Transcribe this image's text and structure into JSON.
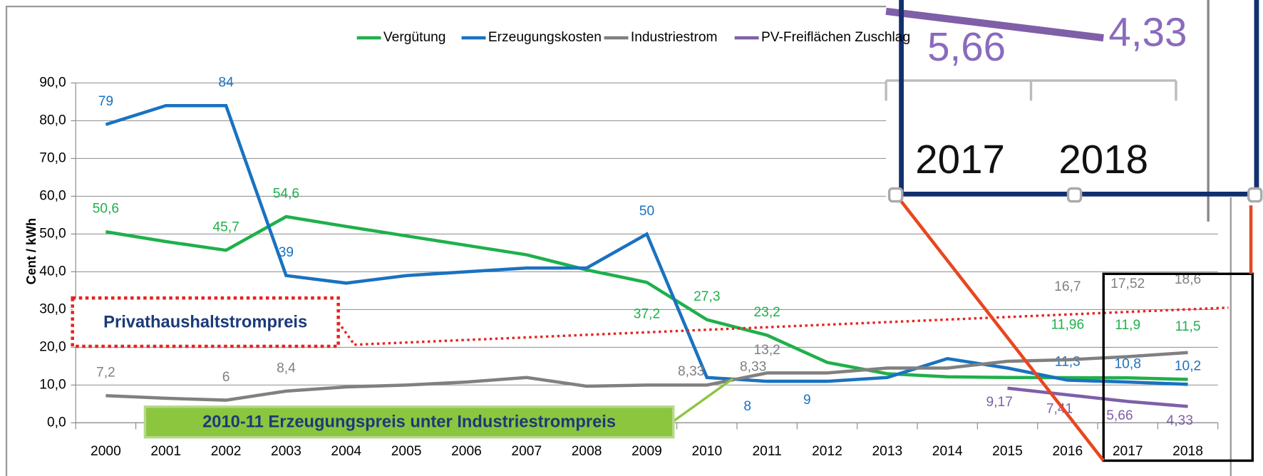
{
  "chart_data": {
    "type": "line",
    "y_label": "Cent / kWh",
    "categories": [
      "2000",
      "2001",
      "2002",
      "2003",
      "2004",
      "2005",
      "2006",
      "2007",
      "2008",
      "2009",
      "2010",
      "2011",
      "2012",
      "2013",
      "2014",
      "2015",
      "2016",
      "2017",
      "2018"
    ],
    "ylim": [
      0,
      90
    ],
    "yticks": [
      {
        "value": 0,
        "label": "0,0"
      },
      {
        "value": 10,
        "label": "10,0"
      },
      {
        "value": 20,
        "label": "20,0"
      },
      {
        "value": 30,
        "label": "30,0"
      },
      {
        "value": 40,
        "label": "40,0"
      },
      {
        "value": 50,
        "label": "50,0"
      },
      {
        "value": 60,
        "label": "60,0"
      },
      {
        "value": 70,
        "label": "70,0"
      },
      {
        "value": 80,
        "label": "80,0"
      },
      {
        "value": 90,
        "label": "90,0"
      }
    ],
    "grid": true,
    "legend": "top",
    "series": [
      {
        "name": "Vergütung",
        "color": "#1fb04b",
        "values": [
          50.6,
          48,
          45.7,
          54.6,
          52,
          49.5,
          47,
          44.5,
          40.5,
          37.2,
          27.3,
          23.2,
          16,
          13,
          12.2,
          12,
          11.96,
          11.9,
          11.5
        ],
        "value_labels": [
          "50,6",
          null,
          "45,7",
          "54,6",
          null,
          null,
          null,
          null,
          null,
          "37,2",
          "27,3",
          "23,2",
          null,
          null,
          null,
          null,
          "11,96",
          "11,9",
          "11,5"
        ]
      },
      {
        "name": "Erzeugungskosten",
        "color": "#1a72c0",
        "values": [
          79,
          84,
          84,
          39,
          37,
          39,
          40,
          41,
          41,
          50,
          12,
          11,
          11,
          12,
          17,
          14.5,
          11.3,
          10.8,
          10.2
        ],
        "value_labels": [
          "79",
          null,
          "84",
          "39",
          null,
          null,
          null,
          null,
          null,
          "50",
          null,
          null,
          null,
          null,
          null,
          null,
          "11,3",
          "10,8",
          "10,2"
        ]
      },
      {
        "name": "Industriestrom",
        "color": "#808080",
        "values": [
          7.2,
          6.5,
          6,
          8.4,
          9.5,
          10,
          10.8,
          12,
          9.7,
          10,
          10,
          13.2,
          13.2,
          14.5,
          14.5,
          16.3,
          16.7,
          17.52,
          18.6
        ],
        "value_labels": [
          "7,2",
          null,
          "6",
          "8,4",
          null,
          null,
          null,
          null,
          null,
          null,
          null,
          "13,2",
          null,
          null,
          null,
          null,
          "16,7",
          "17,52",
          "18,6"
        ]
      },
      {
        "name": "PV-Freiflächen Zuschlag",
        "color": "#7f5fa8",
        "values": [
          null,
          null,
          null,
          null,
          null,
          null,
          null,
          null,
          null,
          null,
          null,
          null,
          null,
          null,
          null,
          9.17,
          7.41,
          5.66,
          4.33
        ],
        "value_labels": [
          null,
          null,
          null,
          null,
          null,
          null,
          null,
          null,
          null,
          null,
          null,
          null,
          null,
          null,
          null,
          "9,17",
          "7,41",
          "5,66",
          "4,33"
        ]
      }
    ],
    "annotations": [
      "8",
      "9",
      "8,33",
      "8,33",
      "Privathaushaltstrompreis",
      "2010-11 Erzeugungspreis unter Industriestrompreis"
    ],
    "inset": {
      "values": [
        "5,66",
        "4,33"
      ],
      "categories": [
        "2017",
        "2018"
      ]
    }
  }
}
